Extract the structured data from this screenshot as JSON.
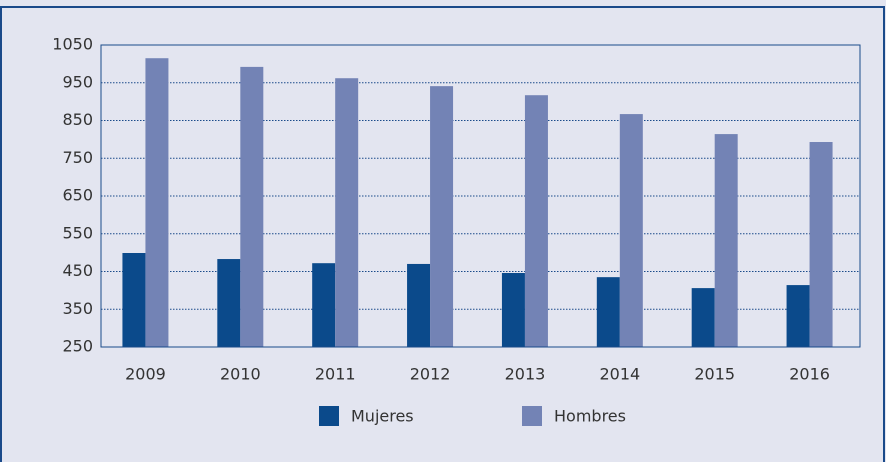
{
  "chart_data": {
    "type": "bar",
    "categories": [
      "2009",
      "2010",
      "2011",
      "2012",
      "2013",
      "2014",
      "2015",
      "2016"
    ],
    "series": [
      {
        "name": "Mujeres",
        "color": "#0b4a8b",
        "values": [
          499,
          483,
          472,
          470,
          446,
          435,
          406,
          414
        ]
      },
      {
        "name": "Hombres",
        "color": "#7383b5",
        "values": [
          1015,
          992,
          962,
          941,
          917,
          867,
          814,
          793
        ]
      }
    ],
    "ylim": [
      250,
      1050
    ],
    "yticks": [
      250,
      350,
      450,
      550,
      650,
      750,
      850,
      950,
      1050
    ],
    "grid": true,
    "legend": "bottom"
  }
}
